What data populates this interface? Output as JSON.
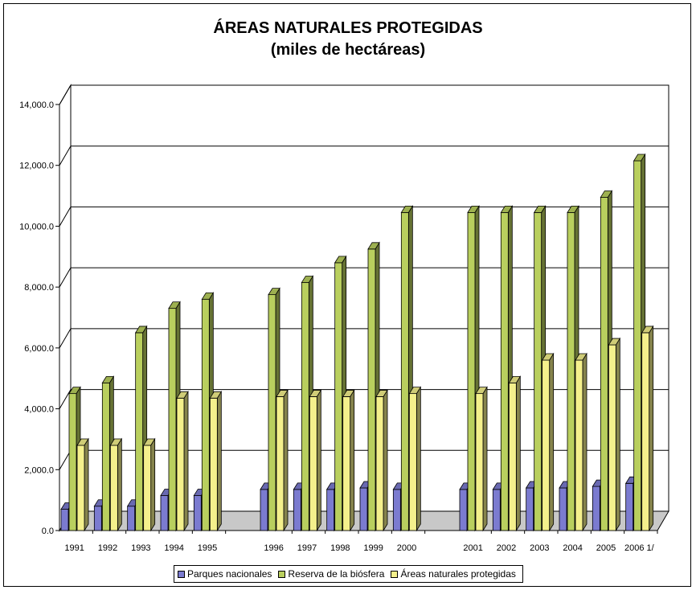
{
  "chart_data": {
    "type": "bar",
    "title": "ÁREAS NATURALES PROTEGIDAS",
    "subtitle": "(miles de hectáreas)",
    "xlabel": "",
    "ylabel": "",
    "ylim": [
      0,
      14000
    ],
    "yticks": [
      "0.0",
      "2,000.0",
      "4,000.0",
      "6,000.0",
      "8,000.0",
      "10,000.0",
      "12,000.0",
      "14,000.0"
    ],
    "grid": true,
    "legend_position": "bottom",
    "categories": [
      "1991",
      "1992",
      "1993",
      "1994",
      "1995",
      "",
      "1996",
      "1997",
      "1998",
      "1999",
      "2000",
      "",
      "2001",
      "2002",
      "2003",
      "2004",
      "2005",
      "2006 1/"
    ],
    "series": [
      {
        "name": "Parques nacionales",
        "color": "#7b7bd0",
        "values": [
          700,
          800,
          800,
          1150,
          1150,
          null,
          1350,
          1350,
          1350,
          1400,
          1350,
          null,
          1350,
          1350,
          1400,
          1400,
          1450,
          1550
        ]
      },
      {
        "name": "Reserva de la biósfera",
        "color": "#b9cf5e",
        "values": [
          4500,
          4850,
          6500,
          7300,
          7600,
          null,
          7750,
          8150,
          8800,
          9250,
          10450,
          null,
          10450,
          10450,
          10450,
          10450,
          10950,
          12150
        ]
      },
      {
        "name": "Áreas naturales protegidas",
        "color": "#f4f08c",
        "values": [
          2800,
          2800,
          2800,
          4350,
          4350,
          null,
          4400,
          4400,
          4400,
          4400,
          4500,
          null,
          4500,
          4850,
          5600,
          5600,
          6100,
          6500
        ]
      }
    ]
  }
}
